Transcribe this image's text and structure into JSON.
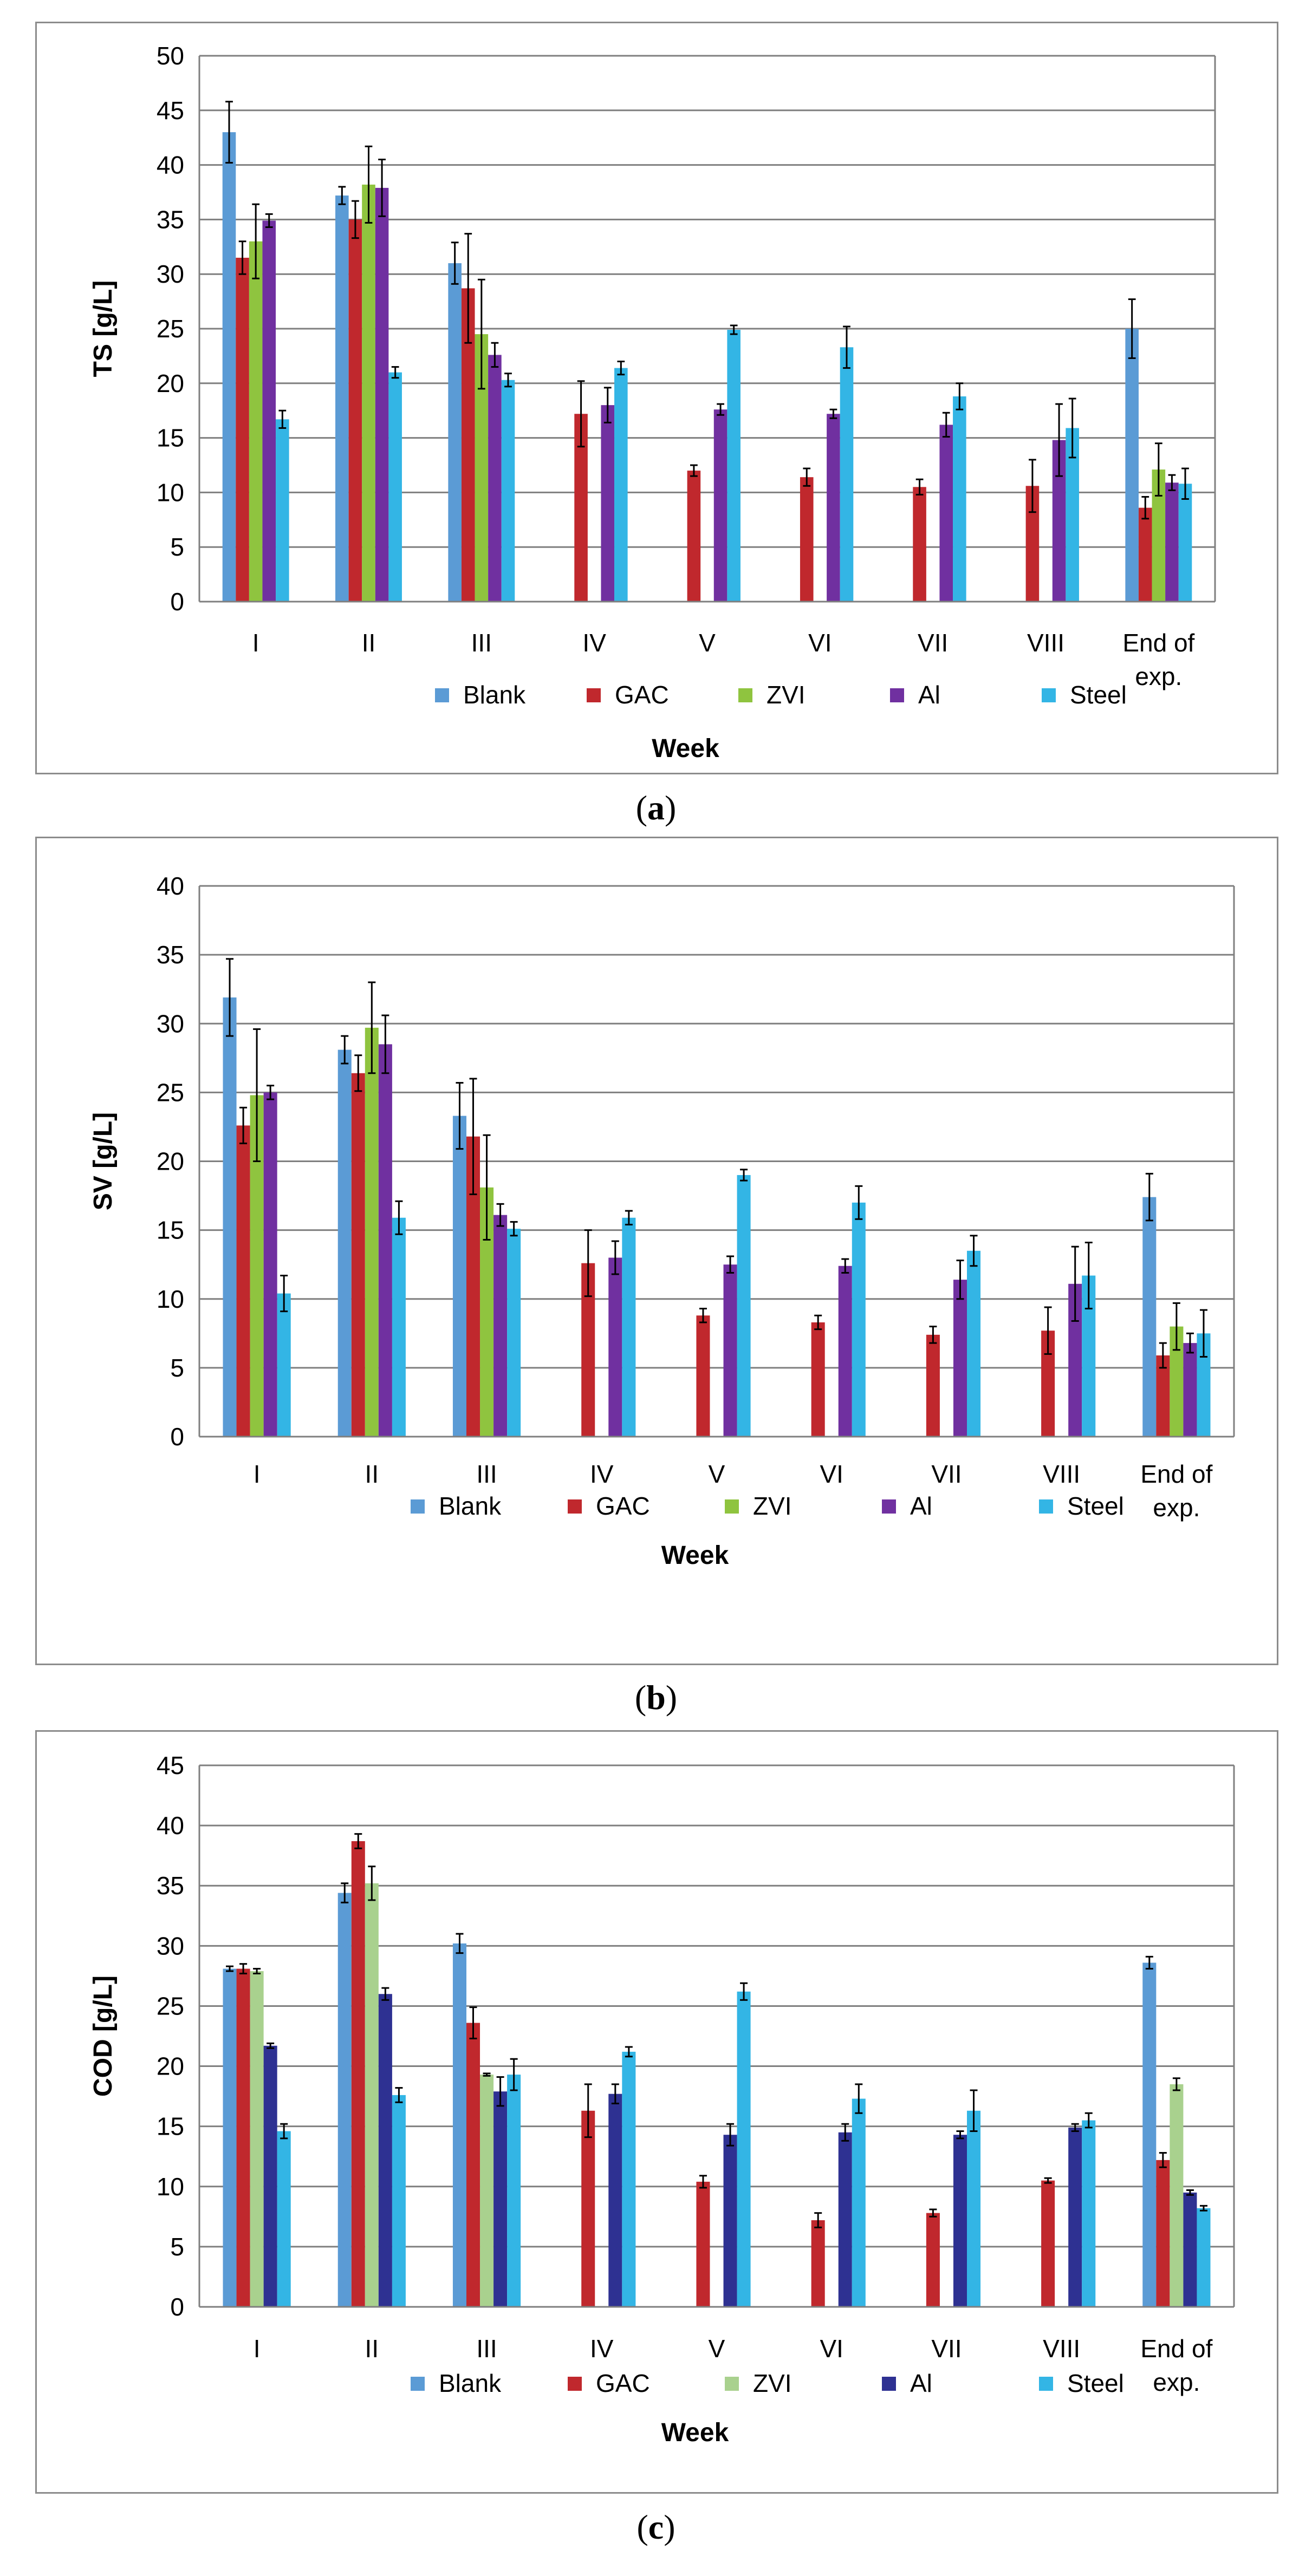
{
  "colors": {
    "Blank": "#5b9bd5",
    "GAC": "#c0282d",
    "ZVI": "#8fc43f",
    "ZVI_light": "#a9d18e",
    "Al": "#7030a0",
    "Al_dark": "#2e3192",
    "Steel": "#33b5e5",
    "grid": "#7f7f7f"
  },
  "captions": [
    {
      "open": "(",
      "letter": "a",
      "close": ")"
    },
    {
      "open": "(",
      "letter": "b",
      "close": ")"
    },
    {
      "open": "(",
      "letter": "c",
      "close": ")"
    }
  ],
  "chart_data": [
    {
      "type": "bar",
      "title": "",
      "xlabel": "Week",
      "ylabel": "TS [g/L]",
      "ylim": [
        0,
        50
      ],
      "ystep": 5,
      "grid": true,
      "legend": "bottom",
      "categories": [
        "I",
        "II",
        "III",
        "IV",
        "V",
        "VI",
        "VII",
        "VIII",
        "End of exp."
      ],
      "series": [
        {
          "name": "Blank",
          "color": "Blank",
          "values": [
            43.0,
            37.2,
            31.0,
            null,
            null,
            null,
            null,
            null,
            25.0
          ],
          "errors": [
            2.8,
            0.8,
            1.9,
            null,
            null,
            null,
            null,
            null,
            2.7
          ]
        },
        {
          "name": "GAC",
          "color": "GAC",
          "values": [
            31.5,
            35.0,
            28.7,
            17.2,
            12.0,
            11.4,
            10.5,
            10.6,
            8.6
          ],
          "errors": [
            1.5,
            1.7,
            5.0,
            3.0,
            0.5,
            0.8,
            0.7,
            2.4,
            1.0
          ]
        },
        {
          "name": "ZVI",
          "color": "ZVI",
          "values": [
            33.0,
            38.2,
            24.5,
            null,
            null,
            null,
            null,
            null,
            12.1
          ],
          "errors": [
            3.4,
            3.5,
            5.0,
            null,
            null,
            null,
            null,
            null,
            2.4
          ]
        },
        {
          "name": "Al",
          "color": "Al",
          "values": [
            34.9,
            37.9,
            22.6,
            18.0,
            17.6,
            17.2,
            16.2,
            14.8,
            10.9
          ],
          "errors": [
            0.6,
            2.6,
            1.1,
            1.6,
            0.5,
            0.4,
            1.1,
            3.3,
            0.7
          ]
        },
        {
          "name": "Steel",
          "color": "Steel",
          "values": [
            16.7,
            21.0,
            20.3,
            21.4,
            24.9,
            23.3,
            18.8,
            15.9,
            10.8
          ],
          "errors": [
            0.8,
            0.5,
            0.6,
            0.6,
            0.4,
            1.9,
            1.2,
            2.7,
            1.4
          ]
        }
      ]
    },
    {
      "type": "bar",
      "title": "",
      "xlabel": "Week",
      "ylabel": "SV [g/L]",
      "ylim": [
        0,
        40
      ],
      "ystep": 5,
      "grid": true,
      "legend": "bottom",
      "categories": [
        "I",
        "II",
        "III",
        "IV",
        "V",
        "VI",
        "VII",
        "VIII",
        "End of exp."
      ],
      "series": [
        {
          "name": "Blank",
          "color": "Blank",
          "values": [
            31.9,
            28.1,
            23.3,
            null,
            null,
            null,
            null,
            null,
            17.4
          ],
          "errors": [
            2.8,
            1.0,
            2.4,
            null,
            null,
            null,
            null,
            null,
            1.7
          ]
        },
        {
          "name": "GAC",
          "color": "GAC",
          "values": [
            22.6,
            26.4,
            21.8,
            12.6,
            8.8,
            8.3,
            7.4,
            7.7,
            5.9
          ],
          "errors": [
            1.3,
            1.3,
            4.2,
            2.4,
            0.5,
            0.5,
            0.6,
            1.7,
            0.9
          ]
        },
        {
          "name": "ZVI",
          "color": "ZVI",
          "values": [
            24.8,
            29.7,
            18.1,
            null,
            null,
            null,
            null,
            null,
            8.0
          ],
          "errors": [
            4.8,
            3.3,
            3.8,
            null,
            null,
            null,
            null,
            null,
            1.7
          ]
        },
        {
          "name": "Al",
          "color": "Al",
          "values": [
            25.0,
            28.5,
            16.1,
            13.0,
            12.5,
            12.4,
            11.4,
            11.1,
            6.8
          ],
          "errors": [
            0.5,
            2.1,
            0.8,
            1.2,
            0.6,
            0.5,
            1.4,
            2.7,
            0.7
          ]
        },
        {
          "name": "Steel",
          "color": "Steel",
          "values": [
            10.4,
            15.9,
            15.1,
            15.9,
            19.0,
            17.0,
            13.5,
            11.7,
            7.5
          ],
          "errors": [
            1.3,
            1.2,
            0.5,
            0.5,
            0.4,
            1.2,
            1.1,
            2.4,
            1.7
          ]
        }
      ]
    },
    {
      "type": "bar",
      "title": "",
      "xlabel": "Week",
      "ylabel": "COD [g/L]",
      "ylim": [
        0,
        45
      ],
      "ystep": 5,
      "grid": true,
      "legend": "bottom",
      "categories": [
        "I",
        "II",
        "III",
        "IV",
        "V",
        "VI",
        "VII",
        "VIII",
        "End of exp."
      ],
      "series": [
        {
          "name": "Blank",
          "color": "Blank",
          "values": [
            28.1,
            34.4,
            30.2,
            null,
            null,
            null,
            null,
            null,
            28.6
          ],
          "errors": [
            0.2,
            0.8,
            0.8,
            null,
            null,
            null,
            null,
            null,
            0.5
          ]
        },
        {
          "name": "GAC",
          "color": "GAC",
          "values": [
            28.1,
            38.7,
            23.6,
            16.3,
            10.4,
            7.2,
            7.8,
            10.5,
            12.2
          ],
          "errors": [
            0.4,
            0.6,
            1.3,
            2.2,
            0.5,
            0.6,
            0.3,
            0.2,
            0.6
          ]
        },
        {
          "name": "ZVI",
          "color": "ZVI_light",
          "values": [
            27.9,
            35.2,
            19.3,
            null,
            null,
            null,
            null,
            null,
            18.5
          ],
          "errors": [
            0.2,
            1.4,
            0.1,
            null,
            null,
            null,
            null,
            null,
            0.5
          ]
        },
        {
          "name": "Al",
          "color": "Al_dark",
          "values": [
            21.7,
            26.0,
            17.9,
            17.7,
            14.3,
            14.5,
            14.3,
            14.9,
            9.5
          ],
          "errors": [
            0.2,
            0.5,
            1.2,
            0.8,
            0.9,
            0.7,
            0.3,
            0.3,
            0.2
          ]
        },
        {
          "name": "Steel",
          "color": "Steel",
          "values": [
            14.6,
            17.6,
            19.3,
            21.2,
            26.2,
            17.3,
            16.3,
            15.5,
            8.2
          ],
          "errors": [
            0.6,
            0.6,
            1.3,
            0.4,
            0.7,
            1.2,
            1.7,
            0.6,
            0.2
          ]
        }
      ]
    }
  ]
}
